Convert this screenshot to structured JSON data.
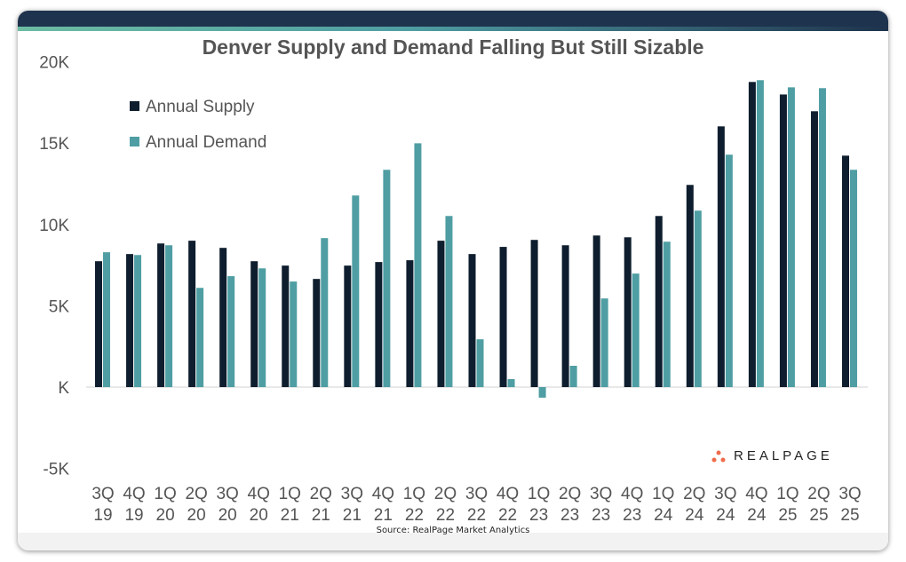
{
  "chart_data": {
    "type": "bar",
    "title": "Denver Supply and Demand Falling But Still Sizable",
    "source": "Source: RealPage Market Analytics",
    "logo_text": "REALPAGE",
    "categories": [
      "3Q 19",
      "4Q 19",
      "1Q 20",
      "2Q 20",
      "3Q 20",
      "4Q 20",
      "1Q 21",
      "2Q 21",
      "3Q 21",
      "4Q 21",
      "1Q 22",
      "2Q 22",
      "3Q 22",
      "4Q 22",
      "1Q 23",
      "2Q 23",
      "3Q 23",
      "4Q 23",
      "1Q 24",
      "2Q 24",
      "3Q 24",
      "4Q 24",
      "1Q 25",
      "2Q 25",
      "3Q 25"
    ],
    "series": [
      {
        "name": "Annual Supply",
        "color": "#0f1e2e",
        "values": [
          7740,
          8180,
          8830,
          9000,
          8560,
          7740,
          7470,
          6650,
          7470,
          7690,
          7800,
          9000,
          8180,
          8620,
          9050,
          8720,
          9320,
          9210,
          10520,
          12430,
          16030,
          18760,
          17990,
          16960,
          14230
        ]
      },
      {
        "name": "Annual Demand",
        "color": "#4f9ea3",
        "values": [
          8290,
          8120,
          8720,
          6100,
          6820,
          7300,
          6490,
          9160,
          11780,
          13360,
          14990,
          10520,
          2940,
          490,
          -650,
          1310,
          5450,
          6980,
          8940,
          10850,
          14290,
          18870,
          18430,
          18380,
          13360
        ]
      }
    ],
    "yticks": [
      "20K",
      "15K",
      "10K",
      "5K",
      "K",
      "-5K"
    ],
    "ytick_values": [
      20000,
      15000,
      10000,
      5000,
      0,
      -5000
    ],
    "ylim": [
      -5000,
      20000
    ],
    "grid": false,
    "legend_position": "top-left"
  }
}
